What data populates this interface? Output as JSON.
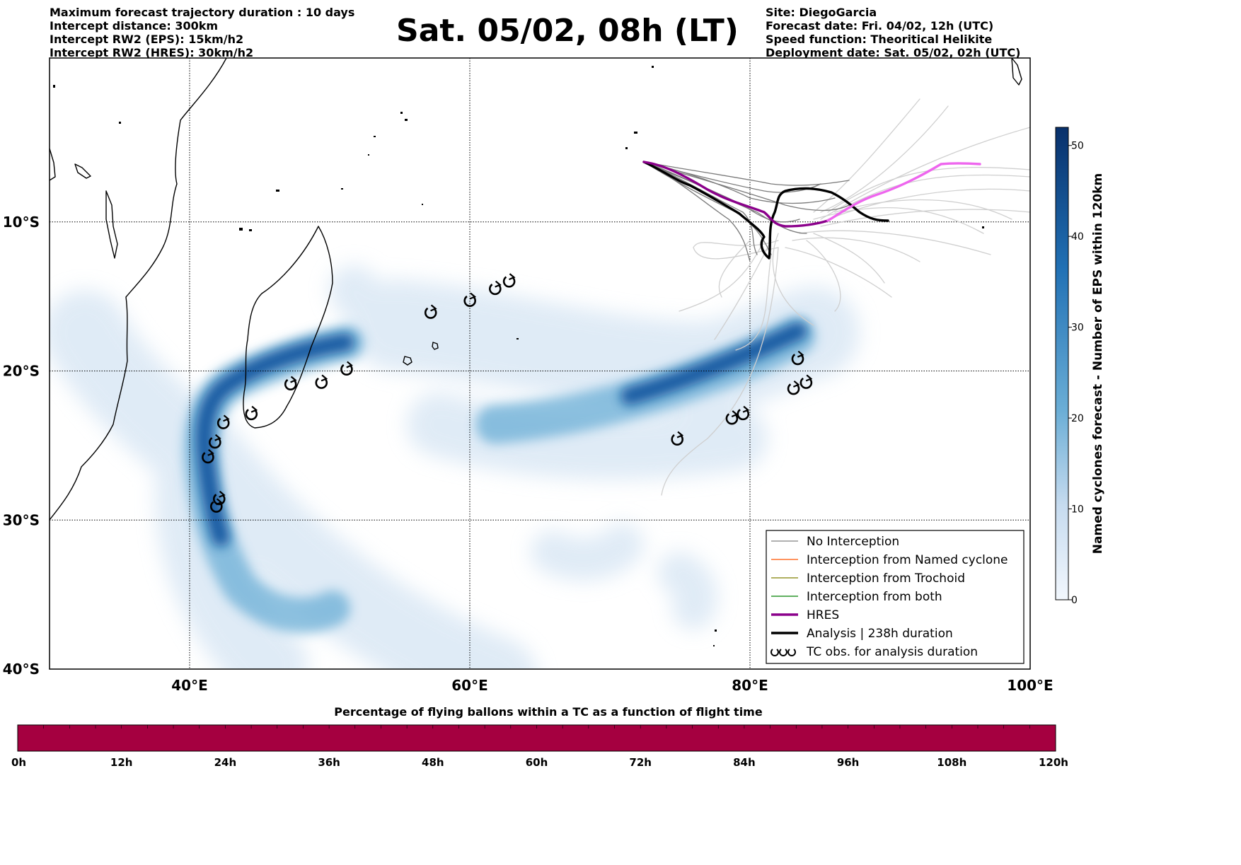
{
  "header": {
    "left_lines": [
      "Maximum forecast trajectory duration : 10 days",
      "Intercept distance: 300km",
      "Intercept RW2 (EPS):  15km/h2",
      "Intercept RW2 (HRES): 30km/h2"
    ],
    "title": "Sat. 05/02, 08h (LT)",
    "right_lines": [
      "Site: DiegoGarcia",
      "Forecast date: Fri. 04/02, 12h (UTC)",
      "Speed function: Theoritical Helikite",
      "Deployment date: Sat. 05/02, 02h (UTC)"
    ]
  },
  "map": {
    "lon_range": [
      30,
      100
    ],
    "lat_range": [
      -40,
      1
    ],
    "lon_ticks": [
      {
        "lon": 40,
        "label": "40°E"
      },
      {
        "lon": 60,
        "label": "60°E"
      },
      {
        "lon": 80,
        "label": "80°E"
      },
      {
        "lon": 100,
        "label": "100°E"
      }
    ],
    "lat_ticks": [
      {
        "lat": -10,
        "label": "10°S"
      },
      {
        "lat": -20,
        "label": "20°S"
      },
      {
        "lat": -30,
        "label": "30°S"
      },
      {
        "lat": -40,
        "label": "40°S"
      }
    ],
    "gridlines": true,
    "colors": {
      "density": "#08306b",
      "hres": "#8b008b",
      "hres_late": "#ee66ee",
      "analysis": "#000000",
      "no_interception": "#777777"
    },
    "tc_obs": [
      [
        57.2,
        -16.1
      ],
      [
        60.0,
        -15.3
      ],
      [
        61.8,
        -14.5
      ],
      [
        62.8,
        -14.0
      ],
      [
        51.2,
        -19.9
      ],
      [
        49.4,
        -20.8
      ],
      [
        47.2,
        -20.9
      ],
      [
        44.4,
        -22.9
      ],
      [
        42.4,
        -23.5
      ],
      [
        41.8,
        -24.8
      ],
      [
        41.3,
        -25.8
      ],
      [
        42.1,
        -28.6
      ],
      [
        41.9,
        -29.1
      ],
      [
        74.8,
        -24.6
      ],
      [
        78.7,
        -23.2
      ],
      [
        79.5,
        -22.9
      ],
      [
        83.1,
        -21.2
      ],
      [
        84.0,
        -20.8
      ],
      [
        83.4,
        -19.2
      ]
    ]
  },
  "legend": {
    "items": [
      {
        "label": "No Interception",
        "color": "#808080",
        "style": "thin"
      },
      {
        "label": "Interception from Named cyclone",
        "color": "#ff5500",
        "style": "thin"
      },
      {
        "label": "Interception from Trochoid",
        "color": "#808000",
        "style": "thin"
      },
      {
        "label": "Interception from both",
        "color": "#008000",
        "style": "thin"
      },
      {
        "label": "HRES",
        "color": "#8b008b",
        "style": "thick"
      },
      {
        "label": "Analysis | 238h duration",
        "color": "#000000",
        "style": "thick"
      },
      {
        "label": "TC obs. for analysis duration",
        "color": "#000000",
        "style": "marker"
      }
    ]
  },
  "colorbar_right": {
    "label": "Named cyclones forecast - Number of EPS within 120km",
    "range": [
      0,
      52
    ],
    "ticks": [
      "0",
      "10",
      "20",
      "30",
      "40",
      "50"
    ],
    "color_low": "#deebf7",
    "color_high": "#08306b"
  },
  "colorbar_bottom": {
    "title": "Percentage of flying ballons within a TC as a function of flight time",
    "color": "#a50040",
    "ticks": [
      "0h",
      "12h",
      "24h",
      "36h",
      "48h",
      "60h",
      "72h",
      "84h",
      "96h",
      "108h",
      "120h"
    ]
  }
}
